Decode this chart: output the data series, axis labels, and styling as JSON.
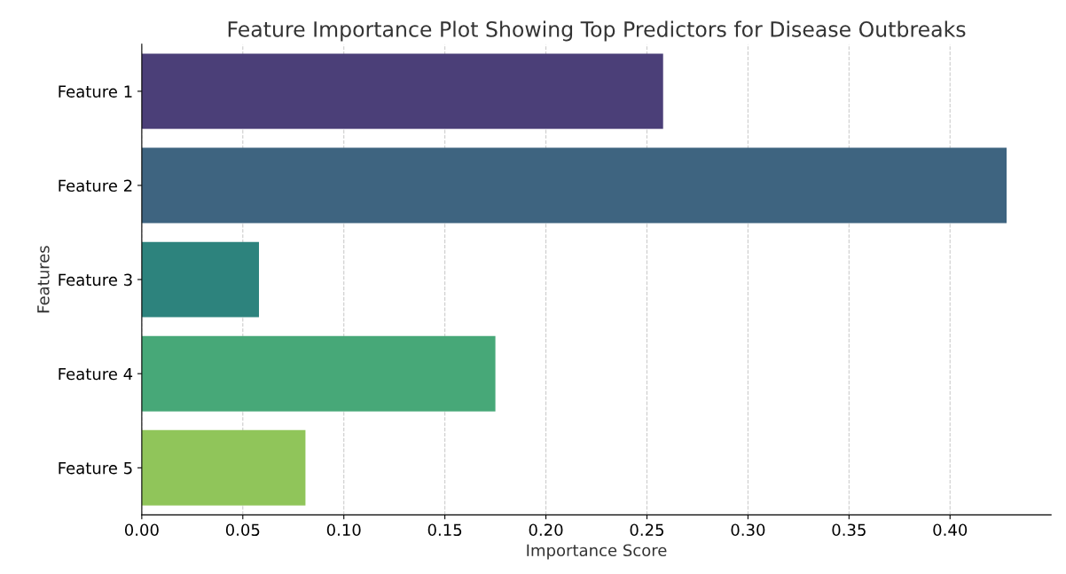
{
  "chart_data": {
    "type": "bar",
    "orientation": "horizontal",
    "title": "Feature Importance Plot Showing Top Predictors for Disease Outbreaks",
    "xlabel": "Importance Score",
    "ylabel": "Features",
    "categories": [
      "Feature 1",
      "Feature 2",
      "Feature 3",
      "Feature 4",
      "Feature 5"
    ],
    "values": [
      0.258,
      0.428,
      0.058,
      0.175,
      0.081
    ],
    "colors": [
      "#4b3f78",
      "#3e6480",
      "#2d837d",
      "#47a878",
      "#90c55a"
    ],
    "xlim": [
      0,
      0.45
    ],
    "xticks": [
      {
        "value": 0,
        "label": "0.00"
      },
      {
        "value": 0.05,
        "label": "0.05"
      },
      {
        "value": 0.1,
        "label": "0.10"
      },
      {
        "value": 0.15,
        "label": "0.15"
      },
      {
        "value": 0.2,
        "label": "0.20"
      },
      {
        "value": 0.25,
        "label": "0.25"
      },
      {
        "value": 0.3,
        "label": "0.30"
      },
      {
        "value": 0.35,
        "label": "0.35"
      },
      {
        "value": 0.4,
        "label": "0.40"
      }
    ],
    "grid": "x"
  }
}
